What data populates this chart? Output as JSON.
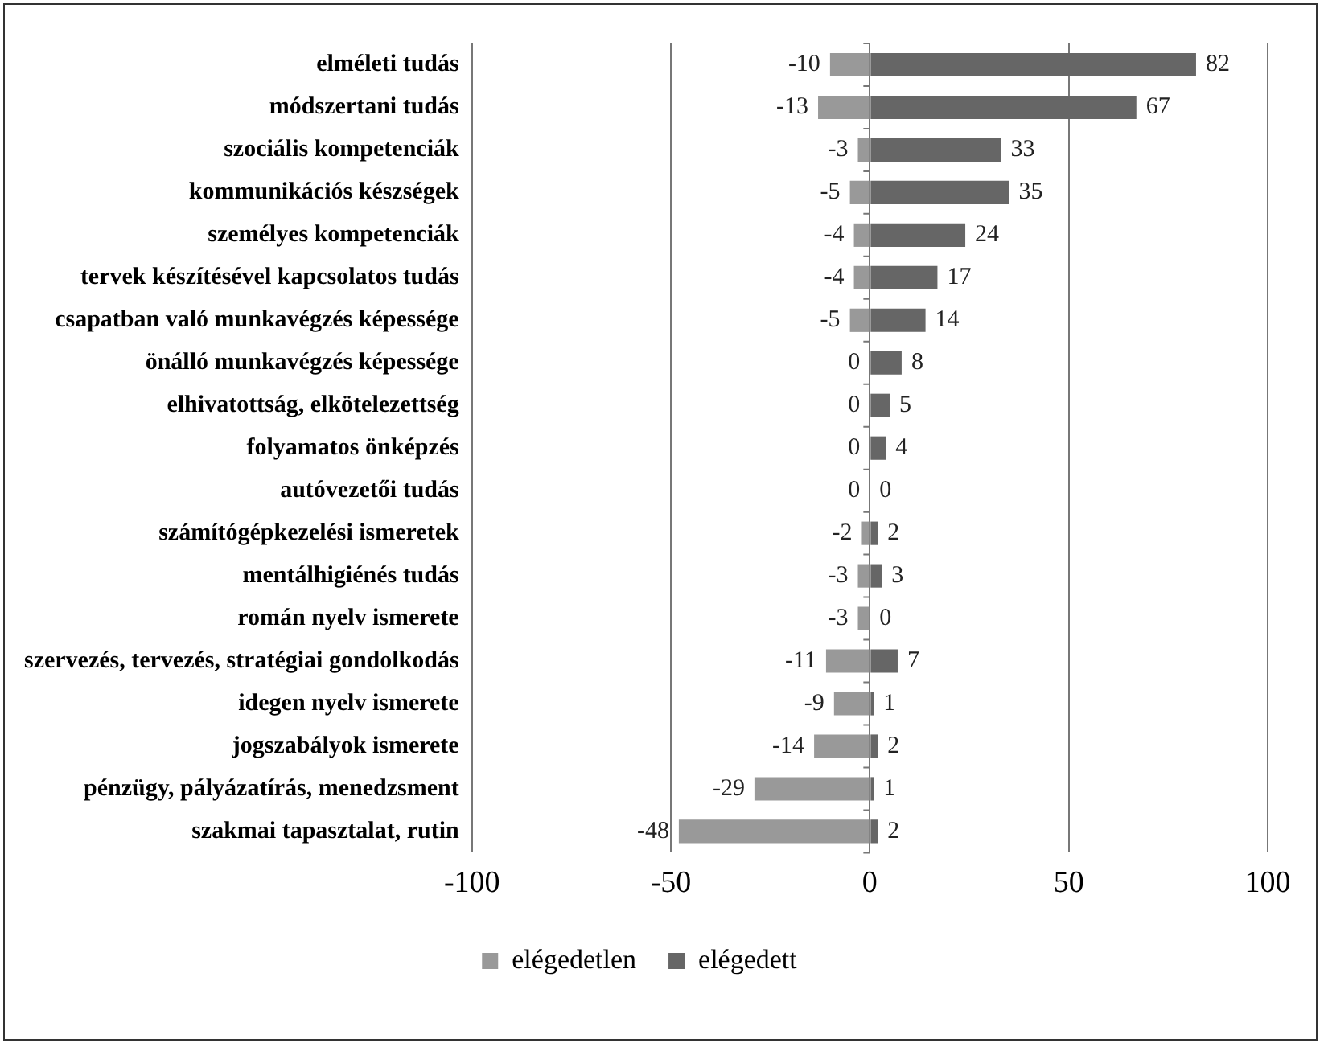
{
  "chart_data": {
    "type": "bar",
    "orientation": "horizontal",
    "stacked": true,
    "categories": [
      "elméleti tudás",
      "módszertani tudás",
      "szociális kompetenciák",
      "kommunikációs készségek",
      "személyes kompetenciák",
      "tervek készítésével kapcsolatos tudás",
      "csapatban való munkavégzés képessége",
      "önálló munkavégzés képessége",
      "elhivatottság, elkötelezettség",
      "folyamatos önképzés",
      "autóvezetői tudás",
      "számítógépkezelési ismeretek",
      "mentálhigiénés tudás",
      "román nyelv ismerete",
      "szervezés, tervezés, stratégiai gondolkodás",
      "idegen nyelv ismerete",
      "jogszabályok ismerete",
      "pénzügy, pályázatírás, menedzsment",
      "szakmai tapasztalat, rutin"
    ],
    "series": [
      {
        "name": "elégedetlen",
        "color": "#999999",
        "values": [
          -10,
          -13,
          -3,
          -5,
          -4,
          -4,
          -5,
          0,
          0,
          0,
          0,
          -2,
          -3,
          -3,
          -11,
          -9,
          -14,
          -29,
          -48
        ]
      },
      {
        "name": "elégedett",
        "color": "#666666",
        "values": [
          82,
          67,
          33,
          35,
          24,
          17,
          14,
          8,
          5,
          4,
          0,
          2,
          3,
          0,
          7,
          1,
          2,
          1,
          2
        ]
      }
    ],
    "xlim": [
      -100,
      100
    ],
    "xticks": [
      -100,
      -50,
      0,
      50,
      100
    ],
    "grid": "x",
    "legend": "bottom",
    "data_labels": true
  }
}
